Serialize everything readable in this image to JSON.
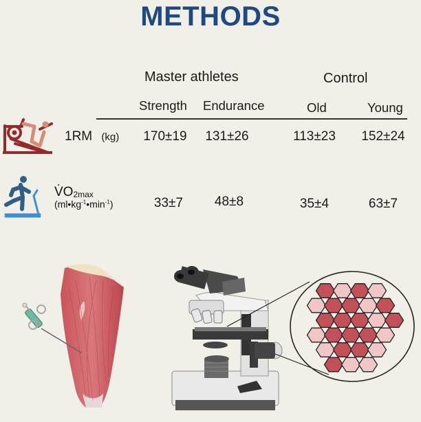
{
  "title": "METHODS",
  "table": {
    "groups": [
      {
        "label": "Master athletes"
      },
      {
        "label": "Control"
      }
    ],
    "columns": [
      "Strength",
      "Endurance",
      "Old",
      "Young"
    ],
    "rows": [
      {
        "icon": "leg-press-icon",
        "label": "1RM",
        "unit": "(kg)",
        "values": [
          "170±19",
          "131±26",
          "113±23",
          "152±24"
        ]
      },
      {
        "icon": "treadmill-runner-icon",
        "label_main": "V̇O",
        "label_sub": "2max",
        "unit_parts": [
          "(ml•kg",
          "-1",
          "•min",
          "-1",
          ")"
        ],
        "values": [
          "33±7",
          "48±8",
          "35±4",
          "63±7"
        ]
      }
    ]
  },
  "illustrations": {
    "biopsy": "muscle-biopsy-needle-thigh",
    "microscope": "light-microscope",
    "fibers": {
      "colors": {
        "dark": "#c25057",
        "light": "#f0c6c7",
        "outline": "#222222"
      },
      "rows": [
        "DLDL",
        "LDDLD",
        "DDDLD",
        "LDDDL",
        "LDDL",
        "DLL"
      ]
    }
  },
  "colors": {
    "title": "#1f4a80",
    "leg_press": "#962a2a",
    "treadmill_runner": "#2e5f86",
    "treadmill_belt": "#3d8fd1",
    "background": "#f0efe8"
  }
}
